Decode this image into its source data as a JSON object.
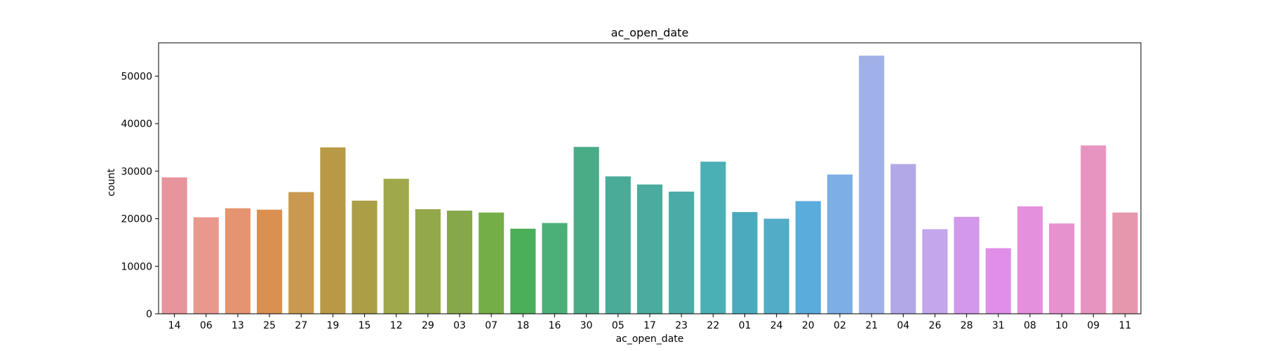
{
  "chart_data": {
    "type": "bar",
    "title": "ac_open_date",
    "xlabel": "ac_open_date",
    "ylabel": "count",
    "categories": [
      "14",
      "06",
      "13",
      "25",
      "27",
      "19",
      "15",
      "12",
      "29",
      "03",
      "07",
      "18",
      "16",
      "30",
      "05",
      "17",
      "23",
      "22",
      "01",
      "24",
      "20",
      "02",
      "21",
      "04",
      "26",
      "28",
      "31",
      "08",
      "10",
      "09",
      "11"
    ],
    "values": [
      28700,
      20300,
      22200,
      21900,
      25600,
      35000,
      23800,
      28400,
      22000,
      21700,
      21300,
      17900,
      19100,
      35100,
      28900,
      27200,
      25700,
      32000,
      21400,
      20000,
      23700,
      29300,
      54300,
      31500,
      17800,
      20400,
      13800,
      22600,
      19000,
      35400,
      21300
    ],
    "colors": [
      "#e8949c",
      "#e8988d",
      "#e59470",
      "#d99050",
      "#c8994f",
      "#b89a46",
      "#aa9e47",
      "#9fa84a",
      "#92a84a",
      "#86a84a",
      "#74ae46",
      "#4bae58",
      "#4bb078",
      "#4aab87",
      "#4aab99",
      "#4aab9e",
      "#4aaba7",
      "#4ab0b6",
      "#4aabbf",
      "#52abc7",
      "#5aacdc",
      "#7eaee6",
      "#a0b0e8",
      "#b2a8e8",
      "#c4a6ec",
      "#d398ea",
      "#e08ee8",
      "#e590dc",
      "#e692cf",
      "#e794c0",
      "#e797ad"
    ],
    "ylim": [
      0,
      57000
    ],
    "yticks": [
      0,
      10000,
      20000,
      30000,
      40000,
      50000
    ],
    "grid": false
  }
}
